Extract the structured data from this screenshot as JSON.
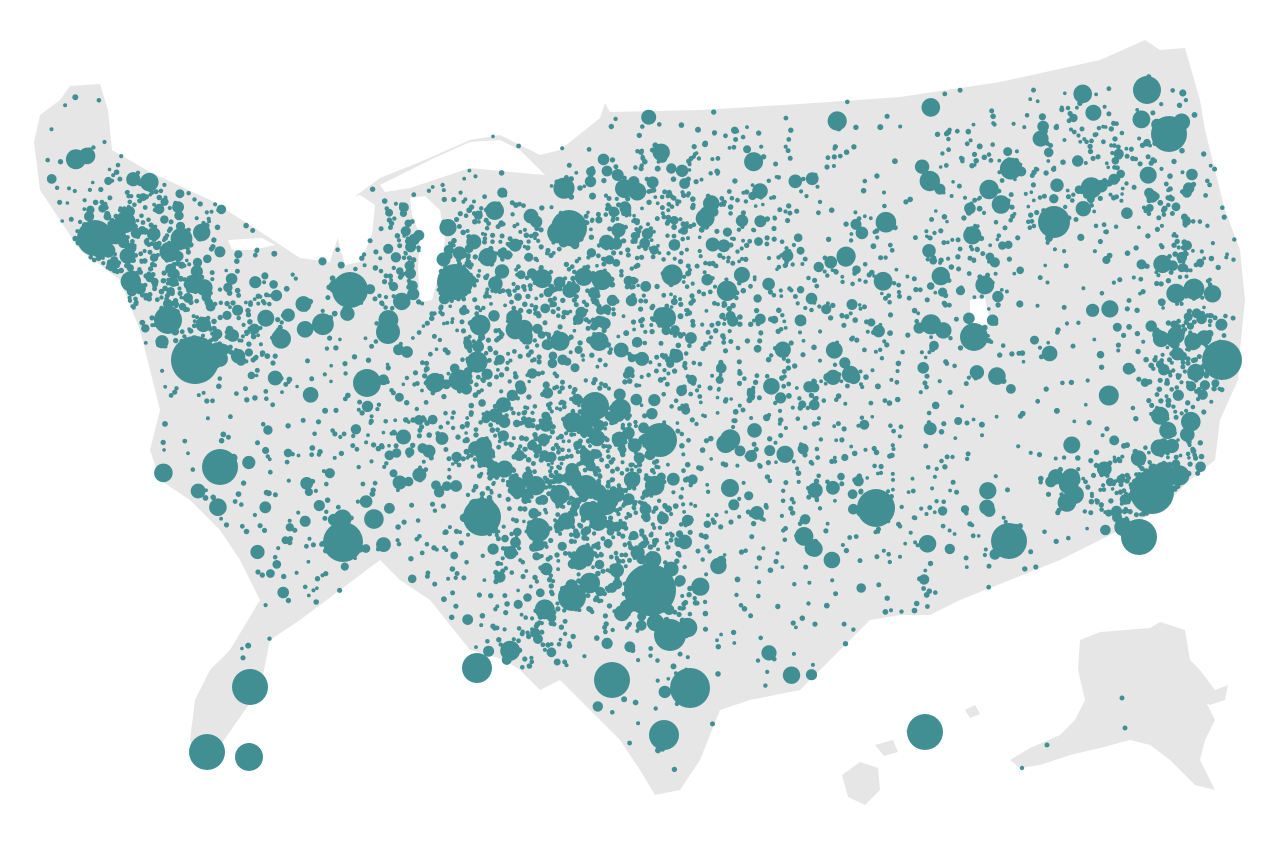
{
  "colors": {
    "background": "#ffffff",
    "land": "#e6e6e6",
    "marker": "#418f93"
  },
  "legend": "none",
  "scatter_seed": 20240517
}
